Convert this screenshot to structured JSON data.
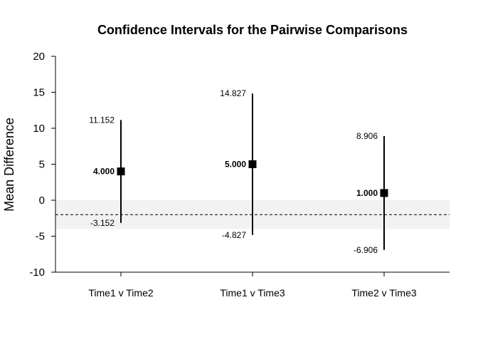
{
  "chart_data": {
    "type": "scatter",
    "title": "Confidence Intervals for the Pairwise Comparisons",
    "xlabel": "",
    "ylabel": "Mean Difference",
    "ylim": [
      -10,
      20
    ],
    "yticks": [
      -10,
      -5,
      0,
      5,
      10,
      15,
      20
    ],
    "ytick_labels": [
      "-10",
      "-5",
      "0",
      "5",
      "10",
      "15",
      "20"
    ],
    "categories": [
      "Time1 v Time2",
      "Time1 v Time3",
      "Time2 v Time3"
    ],
    "means": [
      4.0,
      5.0,
      1.0
    ],
    "lower": [
      -3.152,
      -4.827,
      -6.906
    ],
    "upper": [
      11.152,
      14.827,
      8.906
    ],
    "mean_labels": [
      "4.000",
      "5.000",
      "1.000"
    ],
    "lower_labels": [
      "-3.152",
      "-4.827",
      "-6.906"
    ],
    "upper_labels": [
      "11.152",
      "14.827",
      "8.906"
    ],
    "reference_line": -2,
    "shaded_band": [
      -4,
      0
    ],
    "colors": {
      "marks": "#000000",
      "band": "#f2f2f2",
      "background": "#ffffff"
    }
  }
}
